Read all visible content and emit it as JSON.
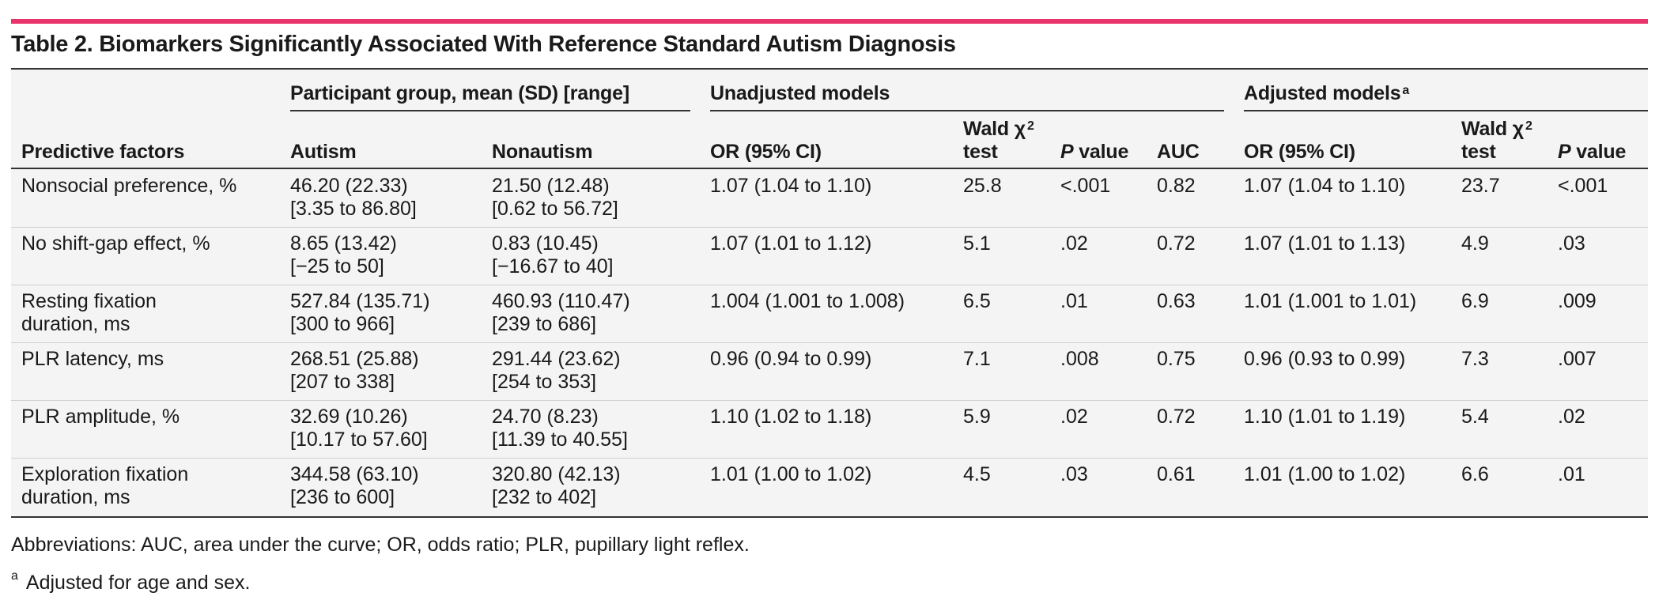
{
  "title": "Table 2. Biomarkers Significantly Associated With Reference Standard Autism Diagnosis",
  "header": {
    "group_participant": "Participant group, mean (SD) [range]",
    "group_unadjusted": "Unadjusted models",
    "group_adjusted": "Adjusted models",
    "group_adjusted_sup": "a",
    "col_predictive": "Predictive factors",
    "col_autism": "Autism",
    "col_nonautism": "Nonautism",
    "col_or": "OR (95% CI)",
    "col_wald_line1": "Wald χ",
    "col_wald_sup": "2",
    "col_wald_line2": "test",
    "col_p_italic": "P",
    "col_p_rest": " value",
    "col_auc": "AUC"
  },
  "rows": [
    {
      "factor": [
        "Nonsocial preference, %",
        ""
      ],
      "autism": [
        "46.20 (22.33)",
        "[3.35 to 86.80]"
      ],
      "nonautism": [
        "21.50 (12.48)",
        "[0.62 to 56.72]"
      ],
      "u_or": "1.07 (1.04 to 1.10)",
      "u_wald": "25.8",
      "u_p": "<.001",
      "auc": "0.82",
      "a_or": "1.07 (1.04 to 1.10)",
      "a_wald": "23.7",
      "a_p": "<.001"
    },
    {
      "factor": [
        "No shift-gap effect, %",
        ""
      ],
      "autism": [
        "8.65 (13.42)",
        "[−25 to 50]"
      ],
      "nonautism": [
        "0.83 (10.45)",
        "[−16.67 to 40]"
      ],
      "u_or": "1.07 (1.01 to 1.12)",
      "u_wald": "5.1",
      "u_p": ".02",
      "auc": "0.72",
      "a_or": "1.07 (1.01 to 1.13)",
      "a_wald": "4.9",
      "a_p": ".03"
    },
    {
      "factor": [
        "Resting fixation",
        "duration, ms"
      ],
      "autism": [
        "527.84 (135.71)",
        "[300 to 966]"
      ],
      "nonautism": [
        "460.93 (110.47)",
        "[239 to 686]"
      ],
      "u_or": "1.004 (1.001 to 1.008)",
      "u_wald": "6.5",
      "u_p": ".01",
      "auc": "0.63",
      "a_or": "1.01 (1.001 to 1.01)",
      "a_wald": "6.9",
      "a_p": ".009"
    },
    {
      "factor": [
        "PLR latency, ms",
        ""
      ],
      "autism": [
        "268.51 (25.88)",
        "[207 to 338]"
      ],
      "nonautism": [
        "291.44 (23.62)",
        "[254 to 353]"
      ],
      "u_or": "0.96 (0.94 to 0.99)",
      "u_wald": "7.1",
      "u_p": ".008",
      "auc": "0.75",
      "a_or": "0.96 (0.93 to 0.99)",
      "a_wald": "7.3",
      "a_p": ".007"
    },
    {
      "factor": [
        "PLR amplitude, %",
        ""
      ],
      "autism": [
        "32.69 (10.26)",
        "[10.17 to 57.60]"
      ],
      "nonautism": [
        "24.70 (8.23)",
        "[11.39 to 40.55]"
      ],
      "u_or": "1.10 (1.02 to 1.18)",
      "u_wald": "5.9",
      "u_p": ".02",
      "auc": "0.72",
      "a_or": "1.10 (1.01 to 1.19)",
      "a_wald": "5.4",
      "a_p": ".02"
    },
    {
      "factor": [
        "Exploration fixation",
        "duration, ms"
      ],
      "autism": [
        "344.58 (63.10)",
        "[236 to 600]"
      ],
      "nonautism": [
        "320.80 (42.13)",
        "[232 to 402]"
      ],
      "u_or": "1.01 (1.00 to 1.02)",
      "u_wald": "4.5",
      "u_p": ".03",
      "auc": "0.61",
      "a_or": "1.01 (1.00 to 1.02)",
      "a_wald": "6.6",
      "a_p": ".01"
    }
  ],
  "footnotes": {
    "abbreviations": "Abbreviations: AUC, area under the curve; OR, odds ratio; PLR, pupillary light reflex.",
    "note_sup": "a",
    "note_text": "Adjusted for age and sex."
  },
  "colors": {
    "accent_bar": "#e8336b",
    "rule": "#333333",
    "shade": "#f4f4f4"
  }
}
